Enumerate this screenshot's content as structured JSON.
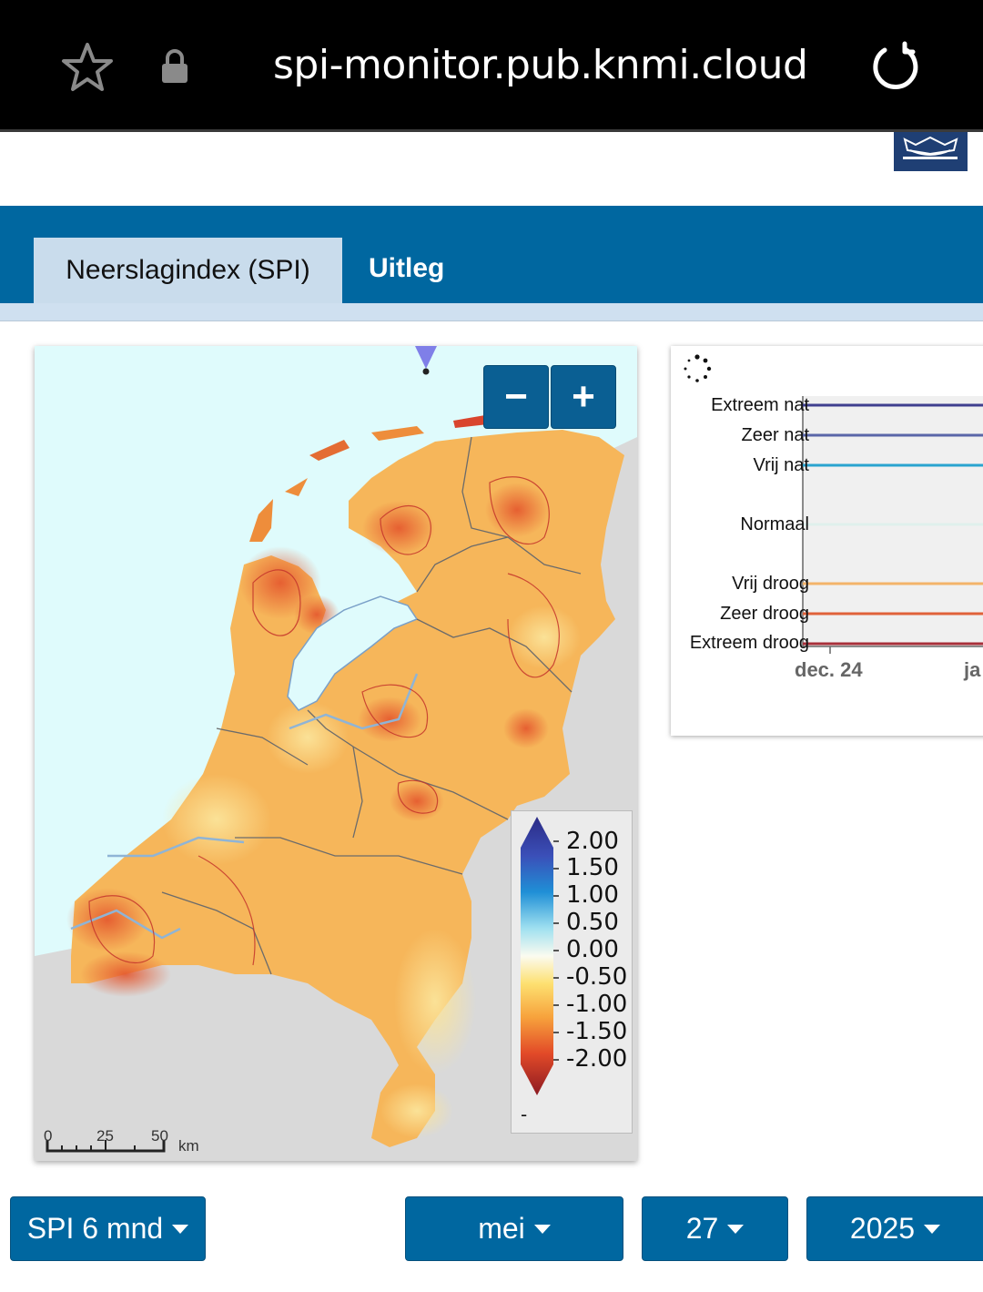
{
  "browser": {
    "url": "spi-monitor.pub.knmi.cloud",
    "icons": [
      "star-icon",
      "lock-icon",
      "reload-icon"
    ]
  },
  "tabs": [
    {
      "label": "Neerslagindex (SPI)",
      "active": true
    },
    {
      "label": "Uitleg",
      "active": false
    }
  ],
  "map": {
    "zoom_out_label": "−",
    "zoom_in_label": "+",
    "scale": {
      "ticks": [
        "0",
        "25",
        "50"
      ],
      "unit": "km"
    },
    "legend": {
      "labels": [
        "2.00",
        "1.50",
        "1.00",
        "0.50",
        "0.00",
        "-0.50",
        "-1.00",
        "-1.50",
        "-2.00"
      ],
      "below_label": "-"
    }
  },
  "chart": {
    "categories": [
      {
        "label": "Extreem nat",
        "color": "#3f3f8f"
      },
      {
        "label": "Zeer nat",
        "color": "#5a66a8"
      },
      {
        "label": "Vrij nat",
        "color": "#2aa3cf"
      },
      {
        "label": "Normaal",
        "color": "#dff0ec"
      },
      {
        "label": "Vrij droog",
        "color": "#f3b46a"
      },
      {
        "label": "Zeer droog",
        "color": "#e0623a"
      },
      {
        "label": "Extreem droog",
        "color": "#a8303a"
      }
    ],
    "x_ticks": [
      "dec. 24",
      "ja"
    ]
  },
  "controls": {
    "spi": "SPI 6 mnd",
    "month": "mei",
    "day": "27",
    "year": "2025"
  }
}
